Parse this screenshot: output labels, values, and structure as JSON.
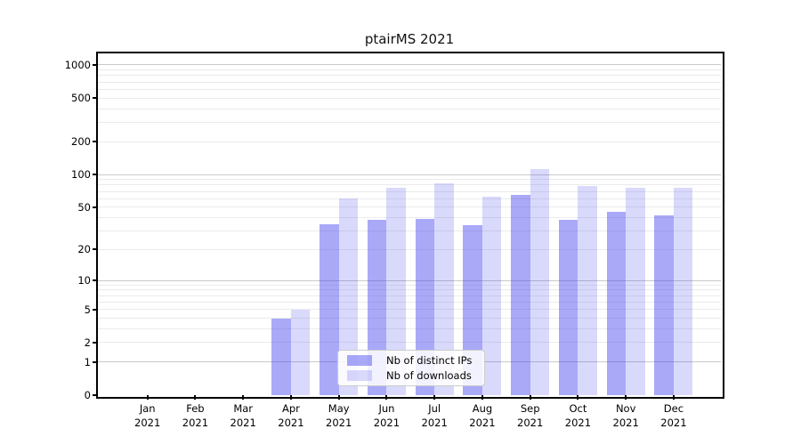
{
  "colors": {
    "background": "#ffffff",
    "frame": "#000000",
    "text": "#000000",
    "grid_major": "#c9c9c9",
    "grid_minor": "#ebebeb",
    "legend_border": "#cccccc",
    "bar_base": "#4040ef"
  },
  "chart_data": {
    "type": "bar",
    "title": "ptairMS 2021",
    "categories": [
      "Jan 2021",
      "Feb 2021",
      "Mar 2021",
      "Apr 2021",
      "May 2021",
      "Jun 2021",
      "Jul 2021",
      "Aug 2021",
      "Sep 2021",
      "Oct 2021",
      "Nov 2021",
      "Dec 2021"
    ],
    "series": [
      {
        "name": "Nb of distinct IPs",
        "key": "distinct-ips",
        "color": "rgba(64,64,239,0.45)",
        "values": [
          0,
          0,
          0,
          4,
          35,
          38,
          39,
          34,
          65,
          38,
          45,
          42
        ]
      },
      {
        "name": "Nb of downloads",
        "key": "downloads",
        "color": "rgba(64,64,239,0.20)",
        "values": [
          0,
          0,
          0,
          5,
          60,
          75,
          83,
          62,
          112,
          78,
          75,
          75
        ]
      }
    ],
    "xlabel": "",
    "ylabel": "",
    "yscale": "log1p",
    "yticks": [
      0,
      1,
      2,
      5,
      10,
      20,
      50,
      100,
      200,
      500,
      1000
    ],
    "ylim": [
      0,
      1270
    ],
    "grid": {
      "orientation": "horizontal",
      "major": [
        1,
        10,
        100,
        1000
      ],
      "minor": [
        2,
        3,
        4,
        5,
        6,
        7,
        8,
        9,
        20,
        30,
        40,
        50,
        60,
        70,
        80,
        90,
        200,
        300,
        400,
        500,
        600,
        700,
        800,
        900
      ]
    },
    "legend_position": "lower center, inside plot"
  },
  "legend": {
    "items": [
      {
        "label": "Nb of distinct IPs"
      },
      {
        "label": "Nb of downloads"
      }
    ]
  }
}
